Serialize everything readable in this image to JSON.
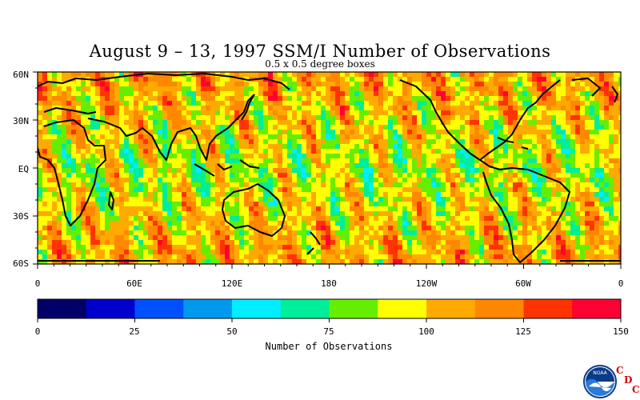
{
  "title": "August 9 – 13, 1997 SSM/I Number of Observations",
  "subtitle": "0.5 x 0.5 degree boxes",
  "lat_labels": [
    "60N",
    "30N",
    "EQ",
    "30S",
    "60S"
  ],
  "lon_labels": [
    "0",
    "60E",
    "120E",
    "180",
    "120W",
    "60W",
    "0"
  ],
  "colorbar": {
    "colors": [
      "#000066",
      "#0000cc",
      "#0050ff",
      "#0099ee",
      "#00eeff",
      "#00ee99",
      "#66ee00",
      "#ffff00",
      "#ffaa00",
      "#ff8800",
      "#ff3300",
      "#ff0033"
    ],
    "ticks": [
      "0",
      "25",
      "50",
      "75",
      "100",
      "125",
      "150"
    ],
    "label": "Number of Observations",
    "min": 0,
    "max": 150
  },
  "chart_data": {
    "type": "heatmap",
    "title": "August 9 – 13, 1997 SSM/I Number of Observations",
    "subtitle": "0.5 x 0.5 degree boxes",
    "xlabel": "",
    "ylabel": "",
    "x_range": [
      0,
      360
    ],
    "y_range": [
      -60,
      60
    ],
    "value_range": [
      0,
      150
    ],
    "colorbar_label": "Number of Observations"
  },
  "logo": {
    "letters": [
      "C",
      "D",
      "C"
    ],
    "emblem": "NOAA"
  }
}
